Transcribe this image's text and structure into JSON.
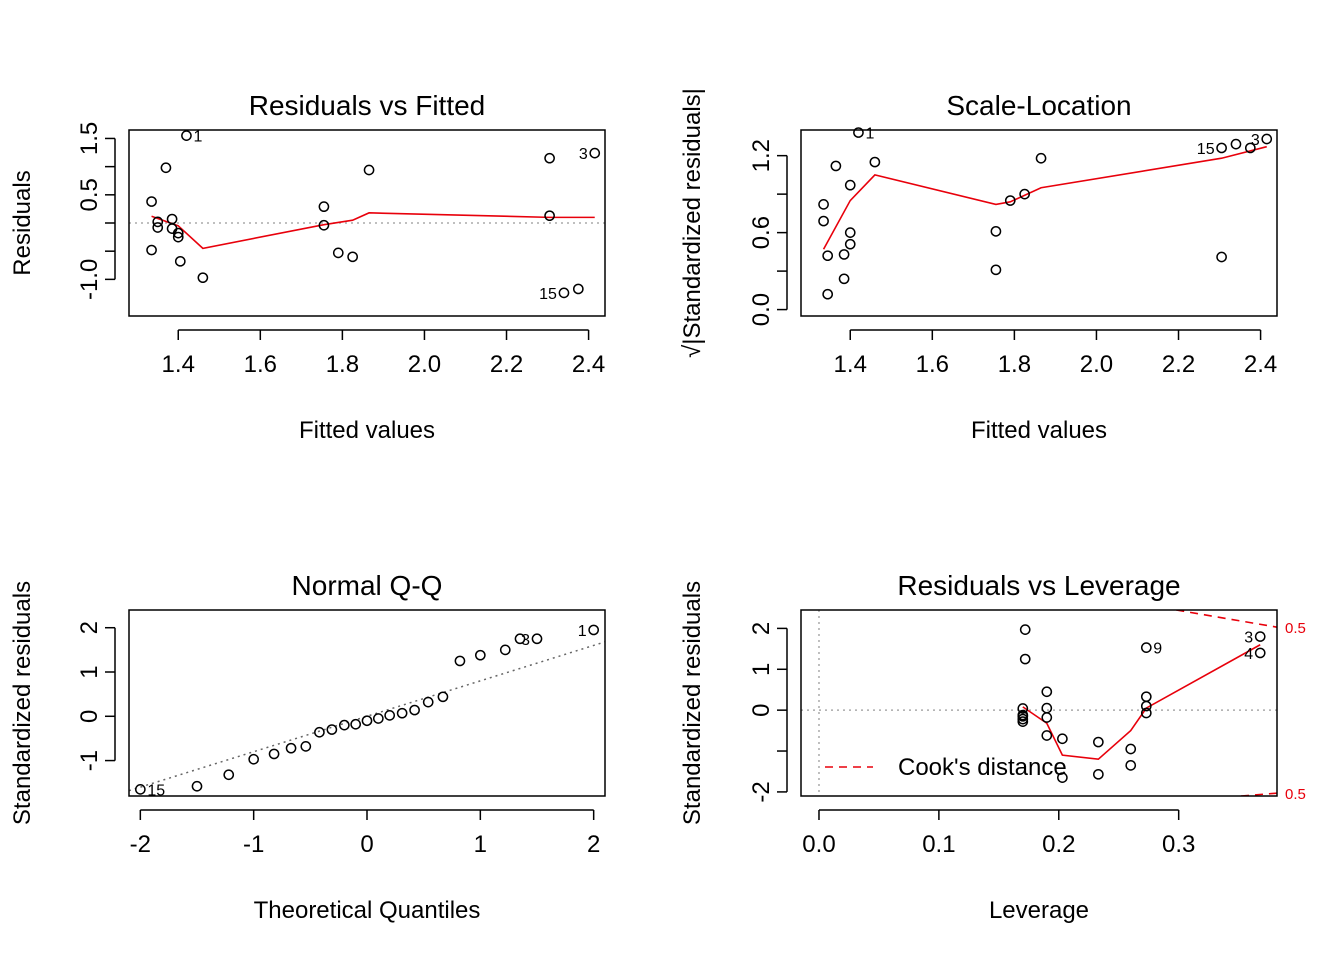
{
  "chart_data": [
    {
      "type": "scatter",
      "title": "Residuals vs Fitted",
      "xlabel": "Fitted values",
      "ylabel": "Residuals",
      "xlim": [
        1.28,
        2.44
      ],
      "ylim": [
        -1.65,
        1.65
      ],
      "x_ticks": [
        1.4,
        1.6,
        1.8,
        2.0,
        2.2,
        2.4
      ],
      "x_tick_labels": [
        "1.4",
        "1.6",
        "1.8",
        "2.0",
        "2.2",
        "2.4"
      ],
      "y_ticks": [
        -1.0,
        0.5,
        1.5
      ],
      "y_tick_labels": [
        "-1.0",
        "0.5",
        "1.5"
      ],
      "y_minor_ticks": [
        -0.5,
        0,
        1.0
      ],
      "reference_line_y": 0,
      "points": [
        {
          "x": 1.335,
          "y": 0.38
        },
        {
          "x": 1.335,
          "y": -0.48
        },
        {
          "x": 1.35,
          "y": 0.02
        },
        {
          "x": 1.35,
          "y": -0.08
        },
        {
          "x": 1.37,
          "y": 0.98
        },
        {
          "x": 1.385,
          "y": 0.07
        },
        {
          "x": 1.385,
          "y": -0.1
        },
        {
          "x": 1.4,
          "y": -0.18
        },
        {
          "x": 1.4,
          "y": -0.25
        },
        {
          "x": 1.405,
          "y": -0.68
        },
        {
          "x": 1.42,
          "y": 1.55
        },
        {
          "x": 1.46,
          "y": -0.97
        },
        {
          "x": 1.755,
          "y": 0.29
        },
        {
          "x": 1.755,
          "y": -0.04
        },
        {
          "x": 1.79,
          "y": -0.53
        },
        {
          "x": 1.825,
          "y": -0.6
        },
        {
          "x": 1.865,
          "y": 0.94
        },
        {
          "x": 2.305,
          "y": 1.15
        },
        {
          "x": 2.305,
          "y": 0.13
        },
        {
          "x": 2.34,
          "y": -1.24
        },
        {
          "x": 2.375,
          "y": -1.17
        },
        {
          "x": 2.415,
          "y": 1.24
        }
      ],
      "smooth": {
        "x": [
          1.335,
          1.4,
          1.46,
          1.755,
          1.825,
          1.865,
          2.305,
          2.415
        ],
        "y": [
          0.12,
          -0.05,
          -0.45,
          -0.03,
          0.05,
          0.18,
          0.1,
          0.1
        ]
      },
      "point_labels": [
        {
          "text": "1",
          "x": 1.42,
          "y": 1.55,
          "side": "right"
        },
        {
          "text": "3",
          "x": 2.415,
          "y": 1.24,
          "side": "left"
        },
        {
          "text": "15",
          "x": 2.34,
          "y": -1.24,
          "side": "left"
        }
      ]
    },
    {
      "type": "scatter",
      "title": "Scale-Location",
      "xlabel": "Fitted values",
      "ylabel": "√|Standardized residuals|",
      "xlim": [
        1.28,
        2.44
      ],
      "ylim": [
        -0.05,
        1.4
      ],
      "x_ticks": [
        1.4,
        1.6,
        1.8,
        2.0,
        2.2,
        2.4
      ],
      "x_tick_labels": [
        "1.4",
        "1.6",
        "1.8",
        "2.0",
        "2.2",
        "2.4"
      ],
      "y_ticks": [
        0.0,
        0.6,
        1.2
      ],
      "y_tick_labels": [
        "0.0",
        "0.6",
        "1.2"
      ],
      "y_minor_ticks": [
        0.3,
        0.9
      ],
      "points": [
        {
          "x": 1.335,
          "y": 0.82
        },
        {
          "x": 1.335,
          "y": 0.69
        },
        {
          "x": 1.345,
          "y": 0.42
        },
        {
          "x": 1.345,
          "y": 0.12
        },
        {
          "x": 1.365,
          "y": 1.12
        },
        {
          "x": 1.385,
          "y": 0.43
        },
        {
          "x": 1.385,
          "y": 0.24
        },
        {
          "x": 1.4,
          "y": 0.97
        },
        {
          "x": 1.4,
          "y": 0.6
        },
        {
          "x": 1.4,
          "y": 0.51
        },
        {
          "x": 1.42,
          "y": 1.38
        },
        {
          "x": 1.46,
          "y": 1.15
        },
        {
          "x": 1.755,
          "y": 0.61
        },
        {
          "x": 1.755,
          "y": 0.31
        },
        {
          "x": 1.79,
          "y": 0.85
        },
        {
          "x": 1.825,
          "y": 0.9
        },
        {
          "x": 1.865,
          "y": 1.18
        },
        {
          "x": 2.305,
          "y": 1.26
        },
        {
          "x": 2.305,
          "y": 0.41
        },
        {
          "x": 2.34,
          "y": 1.29
        },
        {
          "x": 2.375,
          "y": 1.26
        },
        {
          "x": 2.415,
          "y": 1.33
        }
      ],
      "smooth": {
        "x": [
          1.335,
          1.4,
          1.46,
          1.755,
          1.79,
          1.865,
          2.305,
          2.415
        ],
        "y": [
          0.47,
          0.85,
          1.05,
          0.82,
          0.84,
          0.95,
          1.18,
          1.27
        ]
      },
      "point_labels": [
        {
          "text": "1",
          "x": 1.42,
          "y": 1.38,
          "side": "right"
        },
        {
          "text": "3",
          "x": 2.415,
          "y": 1.33,
          "side": "left"
        },
        {
          "text": "15",
          "x": 2.305,
          "y": 1.26,
          "side": "left"
        }
      ]
    },
    {
      "type": "scatter",
      "title": "Normal Q-Q",
      "xlabel": "Theoretical Quantiles",
      "ylabel": "Standardized residuals",
      "xlim": [
        -2.1,
        2.1
      ],
      "ylim": [
        -1.8,
        2.4
      ],
      "x_ticks": [
        -2,
        -1,
        0,
        1,
        2
      ],
      "x_tick_labels": [
        "-2",
        "-1",
        "0",
        "1",
        "2"
      ],
      "y_ticks": [
        -1,
        0,
        1,
        2
      ],
      "y_tick_labels": [
        "-1",
        "0",
        "1",
        "2"
      ],
      "points": [
        {
          "x": -2.0,
          "y": -1.65
        },
        {
          "x": -1.5,
          "y": -1.58
        },
        {
          "x": -1.22,
          "y": -1.32
        },
        {
          "x": -1.0,
          "y": -0.97
        },
        {
          "x": -0.82,
          "y": -0.85
        },
        {
          "x": -0.67,
          "y": -0.72
        },
        {
          "x": -0.54,
          "y": -0.68
        },
        {
          "x": -0.42,
          "y": -0.36
        },
        {
          "x": -0.31,
          "y": -0.3
        },
        {
          "x": -0.2,
          "y": -0.2
        },
        {
          "x": -0.1,
          "y": -0.18
        },
        {
          "x": 0.0,
          "y": -0.1
        },
        {
          "x": 0.1,
          "y": -0.05
        },
        {
          "x": 0.2,
          "y": 0.02
        },
        {
          "x": 0.31,
          "y": 0.07
        },
        {
          "x": 0.42,
          "y": 0.14
        },
        {
          "x": 0.54,
          "y": 0.32
        },
        {
          "x": 0.67,
          "y": 0.44
        },
        {
          "x": 0.82,
          "y": 1.25
        },
        {
          "x": 1.0,
          "y": 1.38
        },
        {
          "x": 1.22,
          "y": 1.5
        },
        {
          "x": 1.35,
          "y": 1.75
        },
        {
          "x": 1.5,
          "y": 1.75
        },
        {
          "x": 2.0,
          "y": 1.95
        }
      ],
      "qq_line": {
        "slope": 0.8,
        "intercept": 0.0
      },
      "point_labels": [
        {
          "text": "1",
          "x": 2.0,
          "y": 1.95,
          "side": "left"
        },
        {
          "text": "3",
          "x": 1.5,
          "y": 1.75,
          "side": "left"
        },
        {
          "text": "15",
          "x": -2.0,
          "y": -1.65,
          "side": "right"
        }
      ]
    },
    {
      "type": "scatter",
      "title": "Residuals vs Leverage",
      "xlabel": "Leverage",
      "ylabel": "Standardized residuals",
      "xlim": [
        -0.015,
        0.382
      ],
      "ylim": [
        -2.1,
        2.45
      ],
      "x_ticks": [
        0.0,
        0.1,
        0.2,
        0.3
      ],
      "x_tick_labels": [
        "0.0",
        "0.1",
        "0.2",
        "0.3"
      ],
      "y_ticks": [
        -2,
        0,
        1,
        2
      ],
      "y_tick_labels": [
        "-2",
        "0",
        "1",
        "2"
      ],
      "y_minor_ticks": [
        -1
      ],
      "reference_line_x": 0,
      "reference_line_y": 0,
      "points": [
        {
          "x": 0.17,
          "y": 0.04
        },
        {
          "x": 0.17,
          "y": -0.15
        },
        {
          "x": 0.17,
          "y": -0.22
        },
        {
          "x": 0.17,
          "y": -0.28
        },
        {
          "x": 0.17,
          "y": -0.12
        },
        {
          "x": 0.172,
          "y": 1.97
        },
        {
          "x": 0.172,
          "y": 1.25
        },
        {
          "x": 0.19,
          "y": 0.45
        },
        {
          "x": 0.19,
          "y": 0.05
        },
        {
          "x": 0.19,
          "y": -0.18
        },
        {
          "x": 0.19,
          "y": -0.62
        },
        {
          "x": 0.203,
          "y": -0.7
        },
        {
          "x": 0.203,
          "y": -1.65
        },
        {
          "x": 0.233,
          "y": -0.78
        },
        {
          "x": 0.233,
          "y": -1.57
        },
        {
          "x": 0.26,
          "y": -0.95
        },
        {
          "x": 0.26,
          "y": -1.35
        },
        {
          "x": 0.273,
          "y": 1.53
        },
        {
          "x": 0.273,
          "y": 0.33
        },
        {
          "x": 0.273,
          "y": 0.1
        },
        {
          "x": 0.273,
          "y": -0.07
        },
        {
          "x": 0.368,
          "y": 1.8
        },
        {
          "x": 0.368,
          "y": 1.4
        }
      ],
      "smooth": {
        "x": [
          0.17,
          0.19,
          0.203,
          0.233,
          0.26,
          0.273,
          0.368
        ],
        "y": [
          0.08,
          -0.32,
          -1.1,
          -1.2,
          -0.5,
          0.05,
          1.6
        ]
      },
      "cooks_contours": [
        {
          "level": "0.5",
          "x": [
            0.298,
            0.382
          ],
          "y": [
            2.45,
            2.03
          ]
        },
        {
          "level": "0.5",
          "x": [
            0.352,
            0.382
          ],
          "y": [
            -2.1,
            -2.03
          ]
        }
      ],
      "legend": {
        "label": "Cook's distance",
        "style": "dashed",
        "color": "#e8000b",
        "placement": "bottom-left"
      },
      "point_labels": [
        {
          "text": "3",
          "x": 0.368,
          "y": 1.8,
          "side": "left"
        },
        {
          "text": "4",
          "x": 0.368,
          "y": 1.4,
          "side": "left"
        },
        {
          "text": "9",
          "x": 0.273,
          "y": 1.53,
          "side": "right"
        }
      ]
    }
  ],
  "colors": {
    "smooth": "#e8000b",
    "cooks": "#e8000b",
    "reference": "#aaaaaa",
    "qq_line": "#666666",
    "points": "#000000"
  }
}
